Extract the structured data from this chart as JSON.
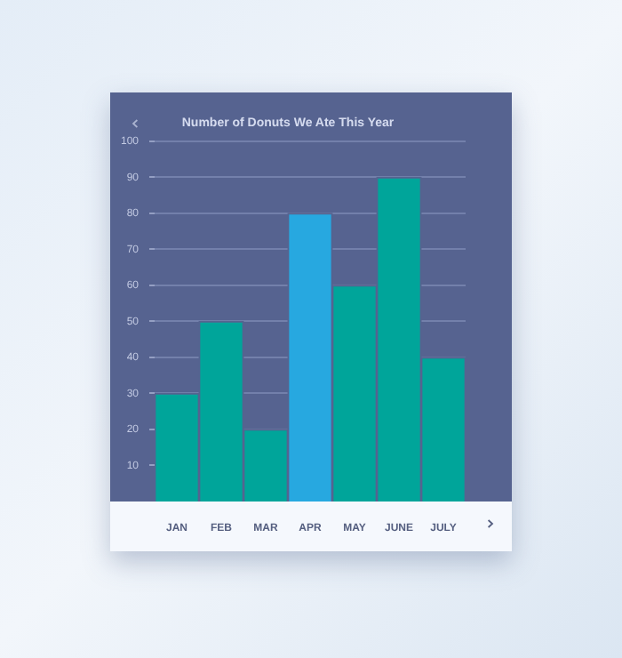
{
  "chart_data": {
    "type": "bar",
    "title": "Number of Donuts We Ate This Year",
    "categories": [
      "JAN",
      "FEB",
      "MAR",
      "APR",
      "MAY",
      "JUNE",
      "JULY"
    ],
    "values": [
      30,
      50,
      20,
      80,
      60,
      90,
      40
    ],
    "colors": [
      "#00a59a",
      "#00a59a",
      "#00a59a",
      "#27a8e0",
      "#00a59a",
      "#00a59a",
      "#00a59a"
    ],
    "ylim": [
      0,
      100
    ],
    "yticks": [
      10,
      20,
      30,
      40,
      50,
      60,
      70,
      80,
      90,
      100
    ],
    "grid": "y"
  }
}
